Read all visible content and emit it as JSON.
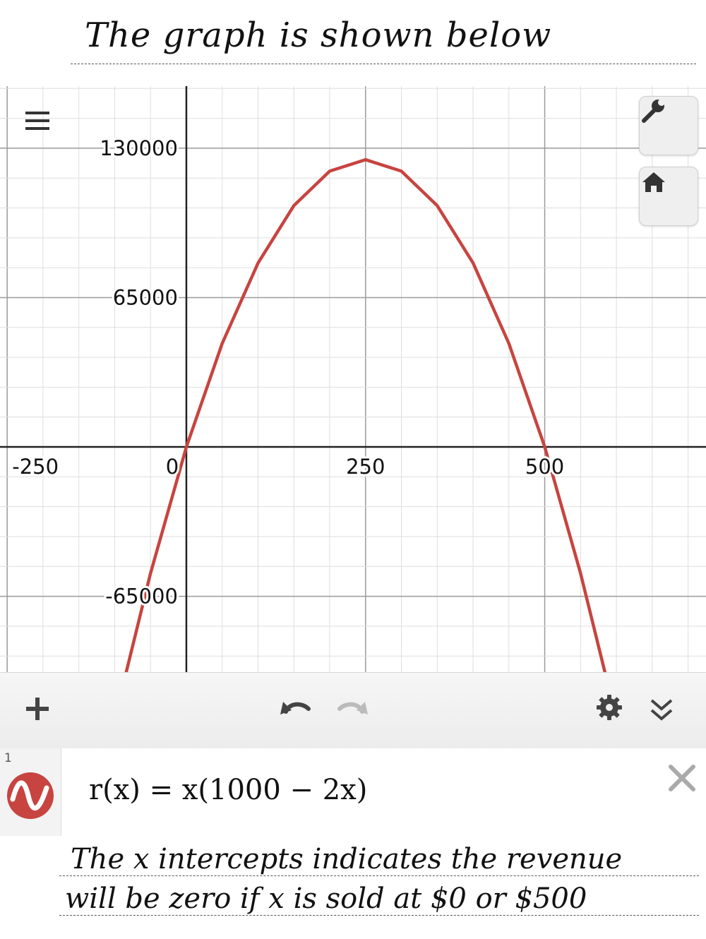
{
  "notes": {
    "top": "The graph is shown below",
    "bottom_line1": "The x intercepts indicates the revenue",
    "bottom_line2": "will be zero if x is sold at $0 or $500"
  },
  "graph": {
    "curve_color": "#c74440",
    "icons": {
      "menu": "hamburger-menu-icon",
      "settings": "wrench-icon",
      "home": "home-icon"
    }
  },
  "chart_data": {
    "type": "line",
    "function": "r(x) = x(1000 - 2x)",
    "xlim": [
      -260,
      725
    ],
    "ylim": [
      -98000,
      157000
    ],
    "x_ticks": [
      -250,
      0,
      250,
      500
    ],
    "x_tick_labels": [
      "-250",
      "0",
      "250",
      "500"
    ],
    "y_ticks": [
      130000,
      65000,
      -65000
    ],
    "y_tick_labels": [
      "130000",
      "65000",
      "-65000"
    ],
    "grid": true,
    "series": [
      {
        "x": [
          -84,
          -50,
          0,
          50,
          100,
          150,
          200,
          250,
          300,
          350,
          400,
          450,
          500,
          550,
          584
        ],
        "y": [
          -98112,
          -55000,
          0,
          45000,
          80000,
          105000,
          120000,
          125000,
          120000,
          105000,
          80000,
          45000,
          0,
          -55000,
          -98112
        ]
      }
    ]
  },
  "toolbar": {
    "icons": {
      "add": "plus-icon",
      "undo": "undo-icon",
      "redo": "redo-icon",
      "settings": "gear-icon",
      "collapse": "double-chevron-down-icon"
    }
  },
  "expression": {
    "index": "1",
    "formula": "r(x) = x(1000 − 2x)",
    "icon": "graph-color-icon",
    "delete_icon": "close-icon"
  }
}
